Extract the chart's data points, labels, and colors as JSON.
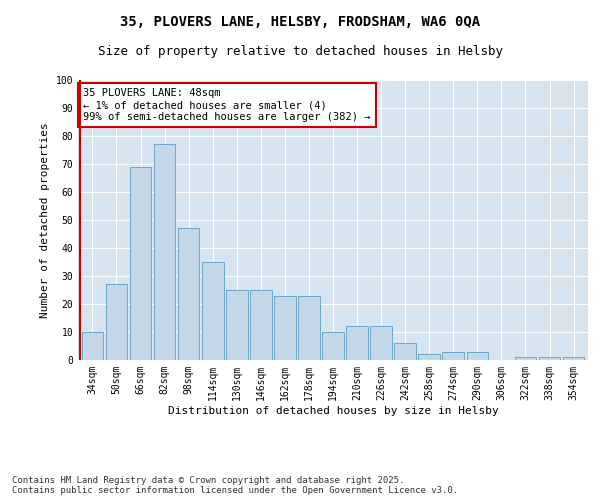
{
  "title_line1": "35, PLOVERS LANE, HELSBY, FRODSHAM, WA6 0QA",
  "title_line2": "Size of property relative to detached houses in Helsby",
  "xlabel": "Distribution of detached houses by size in Helsby",
  "ylabel": "Number of detached properties",
  "categories": [
    "34sqm",
    "50sqm",
    "66sqm",
    "82sqm",
    "98sqm",
    "114sqm",
    "130sqm",
    "146sqm",
    "162sqm",
    "178sqm",
    "194sqm",
    "210sqm",
    "226sqm",
    "242sqm",
    "258sqm",
    "274sqm",
    "290sqm",
    "306sqm",
    "322sqm",
    "338sqm",
    "354sqm"
  ],
  "values": [
    10,
    27,
    69,
    77,
    47,
    35,
    25,
    25,
    23,
    23,
    10,
    12,
    12,
    6,
    2,
    3,
    3,
    0,
    1,
    1,
    1
  ],
  "bar_color": "#c5d8ea",
  "bar_edge_color": "#6fa8cc",
  "annotation_text": "35 PLOVERS LANE: 48sqm\n← 1% of detached houses are smaller (4)\n99% of semi-detached houses are larger (382) →",
  "annotation_box_facecolor": "#ffffff",
  "annotation_box_edgecolor": "#cc0000",
  "vline_color": "#cc0000",
  "ylim": [
    0,
    100
  ],
  "yticks": [
    0,
    10,
    20,
    30,
    40,
    50,
    60,
    70,
    80,
    90,
    100
  ],
  "fig_facecolor": "#ffffff",
  "plot_bg_color": "#d6e4f0",
  "grid_color": "#ffffff",
  "footer_text": "Contains HM Land Registry data © Crown copyright and database right 2025.\nContains public sector information licensed under the Open Government Licence v3.0.",
  "title_fontsize": 10,
  "subtitle_fontsize": 9,
  "axis_label_fontsize": 8,
  "tick_fontsize": 7,
  "annotation_fontsize": 7.5,
  "footer_fontsize": 6.5
}
